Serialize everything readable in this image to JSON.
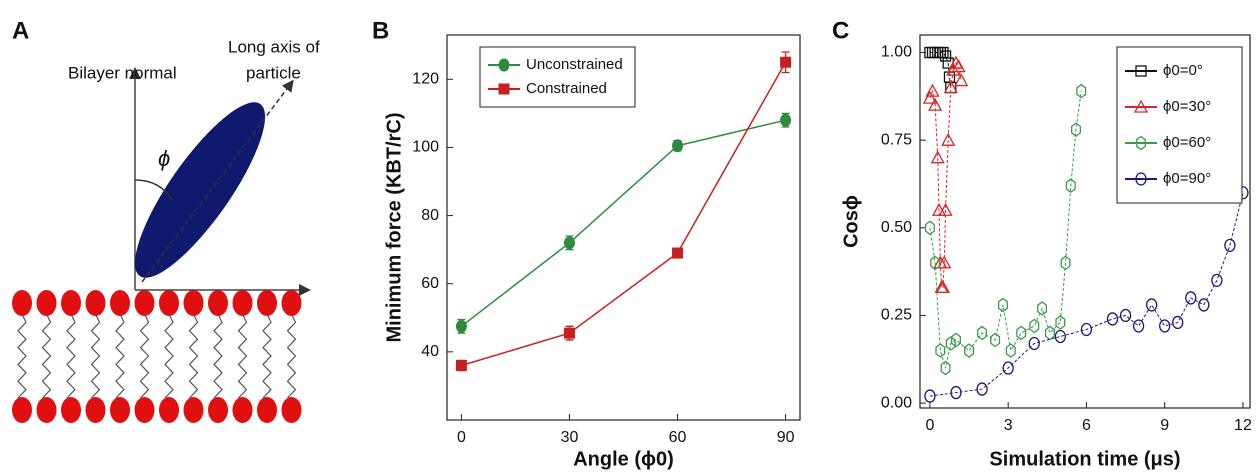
{
  "panel_labels": [
    "A",
    "B",
    "C"
  ],
  "diagram": {
    "normal_label": "Bilayer normal",
    "axis_label": [
      "Long axis of",
      "particle"
    ],
    "angle_label": "ϕ"
  },
  "chart_data": [
    {
      "type": "line",
      "xlabel": "Angle (ϕ0)",
      "ylabel": "Minimum force (KBT/rC)",
      "x": [
        0,
        30,
        60,
        90
      ],
      "series": [
        {
          "name": "Unconstrained",
          "color": "#2e8b3e",
          "marker": "circle",
          "values": [
            47.5,
            72,
            100.5,
            108
          ],
          "errors": [
            2,
            2,
            1.5,
            2
          ]
        },
        {
          "name": "Constrained",
          "color": "#c82020",
          "marker": "square",
          "values": [
            36,
            45.5,
            69,
            125
          ],
          "errors": [
            1.5,
            2,
            1,
            3
          ]
        }
      ],
      "xlim": [
        -4,
        94
      ],
      "ylim": [
        20,
        133
      ],
      "xticks": [
        0,
        30,
        60,
        90
      ],
      "yticks": [
        40,
        60,
        80,
        100,
        120
      ],
      "legend": "upper-left"
    },
    {
      "type": "scatter",
      "xlabel": "Simulation time (μs)",
      "ylabel": "Cosϕ",
      "series": [
        {
          "name": "ϕ0=0°",
          "color": "#111111",
          "marker": "square",
          "x": [
            0,
            0.1,
            0.2,
            0.3,
            0.4,
            0.5,
            0.6,
            0.7,
            0.75,
            0.8
          ],
          "values": [
            1,
            1,
            1,
            1,
            1,
            1,
            0.99,
            0.97,
            0.93,
            0.9
          ]
        },
        {
          "name": "ϕ0=30°",
          "color": "#d62728",
          "marker": "triangle",
          "x": [
            0,
            0.1,
            0.2,
            0.3,
            0.35,
            0.4,
            0.45,
            0.5,
            0.55,
            0.6,
            0.7,
            0.8,
            0.9,
            1.0,
            1.1,
            1.2
          ],
          "values": [
            0.87,
            0.89,
            0.85,
            0.7,
            0.55,
            0.4,
            0.33,
            0.33,
            0.4,
            0.55,
            0.75,
            0.9,
            0.95,
            0.97,
            0.96,
            0.92
          ]
        },
        {
          "name": "ϕ0=60°",
          "color": "#3a9a4a",
          "marker": "hexagon",
          "x": [
            0,
            0.2,
            0.4,
            0.6,
            0.8,
            1.0,
            1.5,
            2,
            2.5,
            2.8,
            3.1,
            3.5,
            4,
            4.3,
            4.6,
            5.0,
            5.2,
            5.4,
            5.6,
            5.8
          ],
          "values": [
            0.5,
            0.4,
            0.15,
            0.1,
            0.17,
            0.18,
            0.15,
            0.2,
            0.18,
            0.28,
            0.15,
            0.2,
            0.22,
            0.27,
            0.2,
            0.23,
            0.4,
            0.62,
            0.78,
            0.89
          ]
        },
        {
          "name": "ϕ0=90°",
          "color": "#1a1a7a",
          "marker": "circle",
          "x": [
            0,
            1,
            2,
            3,
            4,
            5,
            6,
            7,
            7.5,
            8,
            8.5,
            9,
            9.5,
            10,
            10.5,
            11,
            11.5,
            12
          ],
          "values": [
            0.02,
            0.03,
            0.04,
            0.1,
            0.17,
            0.19,
            0.21,
            0.24,
            0.25,
            0.22,
            0.28,
            0.22,
            0.23,
            0.3,
            0.28,
            0.35,
            0.45,
            0.6
          ]
        }
      ],
      "xlim": [
        -0.38,
        12.27
      ],
      "ylim": [
        -0.014,
        1.05
      ],
      "xticks": [
        0,
        3,
        6,
        9,
        12
      ],
      "yticks": [
        {
          "value": 0,
          "label": "0.00"
        },
        {
          "value": 0.25,
          "label": "0.25"
        },
        {
          "value": 0.5,
          "label": "0.50"
        },
        {
          "value": 0.75,
          "label": "0.75"
        },
        {
          "value": 1,
          "label": "1.00"
        }
      ],
      "legend": "upper-right"
    }
  ]
}
